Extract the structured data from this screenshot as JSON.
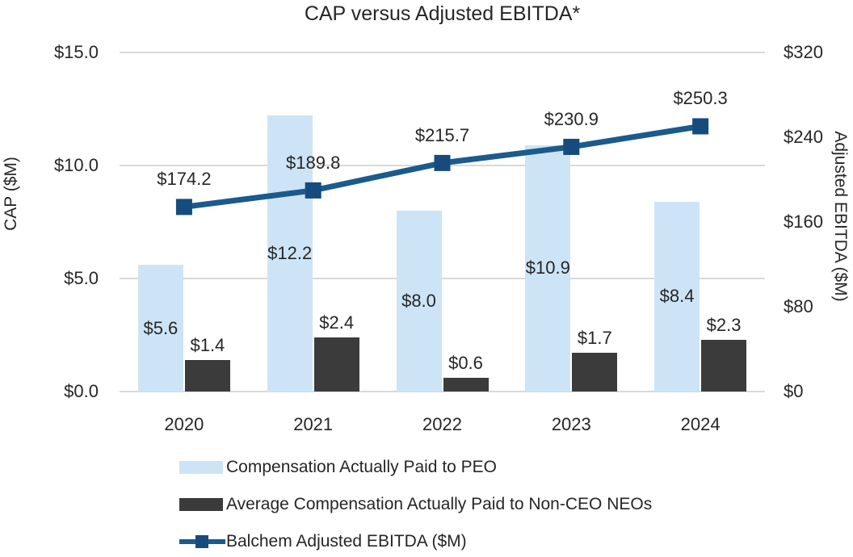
{
  "title": "CAP versus Adjusted EBITDA*",
  "colors": {
    "peo_bar": "#CDE4F6",
    "neo_bar": "#3B3B3B",
    "ebitda_line": "#1B5A8C",
    "ebitda_marker": "#164B7E",
    "gridline": "#D9D9D9",
    "text": "#262626"
  },
  "chart_data": {
    "type": "bar",
    "subtype": "combo bar + line, dual axis",
    "title": "CAP versus Adjusted EBITDA*",
    "categories": [
      "2020",
      "2021",
      "2022",
      "2023",
      "2024"
    ],
    "series": [
      {
        "name": "Compensation Actually Paid to PEO",
        "type": "bar",
        "axis": "left",
        "values": [
          5.6,
          12.2,
          8.0,
          10.9,
          8.4
        ],
        "labels": [
          "$5.6",
          "$12.2",
          "$8.0",
          "$10.9",
          "$8.4"
        ]
      },
      {
        "name": "Average Compensation Actually Paid to Non-CEO NEOs",
        "type": "bar",
        "axis": "left",
        "values": [
          1.4,
          2.4,
          0.6,
          1.7,
          2.3
        ],
        "labels": [
          "$1.4",
          "$2.4",
          "$0.6",
          "$1.7",
          "$2.3"
        ]
      },
      {
        "name": "Balchem Adjusted EBITDA ($M)",
        "type": "line",
        "axis": "right",
        "values": [
          174.2,
          189.8,
          215.7,
          230.9,
          250.3
        ],
        "labels": [
          "$174.2",
          "$189.8",
          "$215.7",
          "$230.9",
          "$250.3"
        ]
      }
    ],
    "left_axis": {
      "label": "CAP ($M)",
      "min": 0,
      "max": 15,
      "ticks": [
        {
          "value": 15,
          "label": "$15.0"
        },
        {
          "value": 10,
          "label": "$10.0"
        },
        {
          "value": 5,
          "label": "$5.0"
        },
        {
          "value": 0,
          "label": "$0.0"
        }
      ]
    },
    "right_axis": {
      "label": "Adjusted EBITDA ($M)",
      "min": 0,
      "max": 320,
      "ticks": [
        {
          "value": 320,
          "label": "$320"
        },
        {
          "value": 240,
          "label": "$240"
        },
        {
          "value": 160,
          "label": "$160"
        },
        {
          "value": 80,
          "label": "$80"
        },
        {
          "value": 0,
          "label": "$0"
        }
      ]
    },
    "grid": "horizontal gridlines at left-axis ticks",
    "legend_position": "bottom-left"
  },
  "legend": [
    {
      "swatch": "peo-bar",
      "label": "Compensation Actually Paid to PEO"
    },
    {
      "swatch": "neo-bar",
      "label": "Average Compensation Actually Paid to Non-CEO NEOs"
    },
    {
      "swatch": "line-marker",
      "label": "Balchem Adjusted EBITDA ($M)"
    }
  ]
}
